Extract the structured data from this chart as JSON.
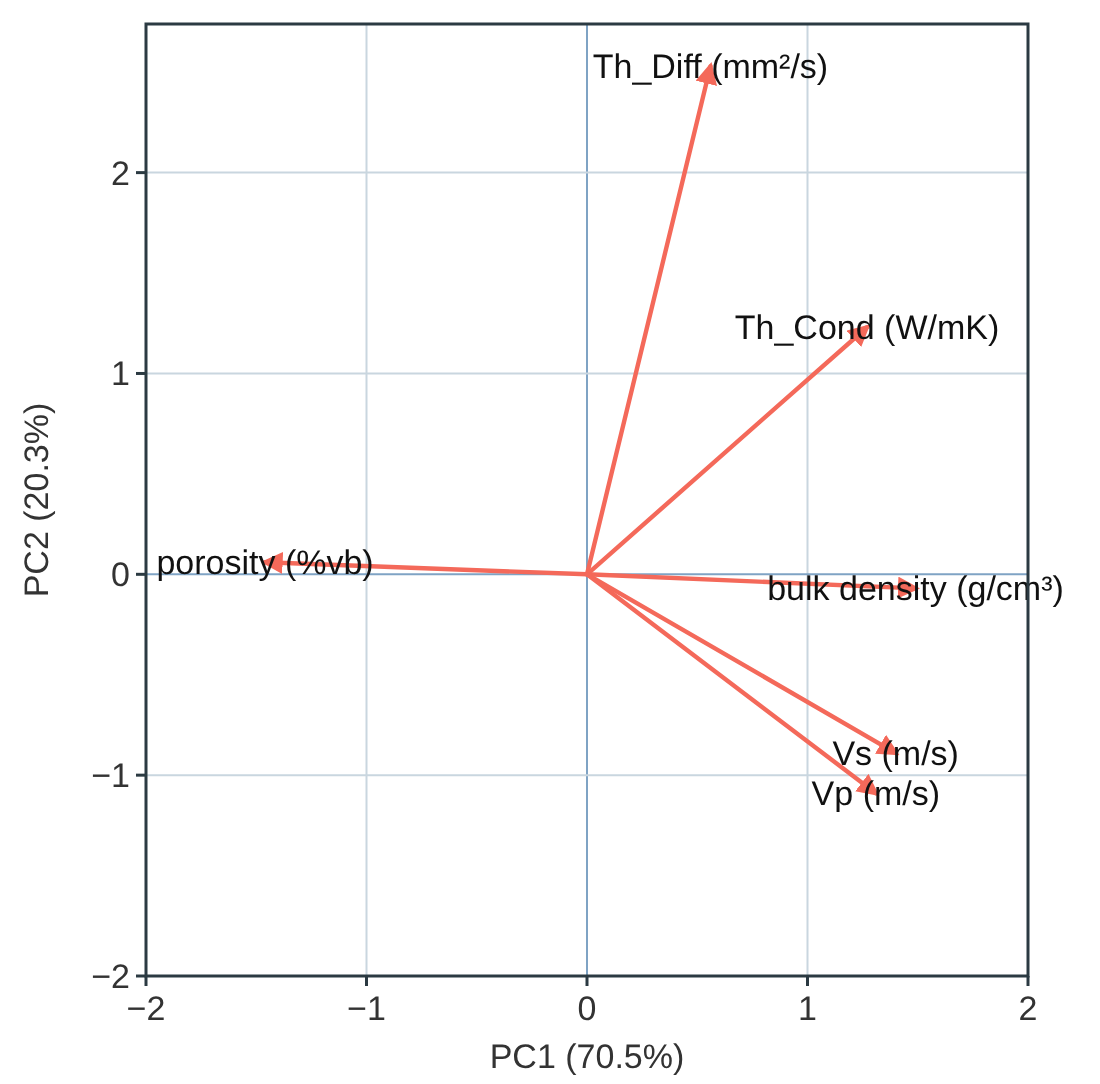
{
  "chart_data": {
    "type": "line",
    "xlabel": "PC1 (70.5%)",
    "ylabel": "PC2 (20.3%)",
    "xlim": [
      -2,
      2
    ],
    "ylim": [
      -2,
      2.74
    ],
    "xticks": [
      {
        "value": -2,
        "label": "−2"
      },
      {
        "value": -1,
        "label": "−1"
      },
      0,
      1,
      2
    ],
    "yticks": [
      {
        "value": -2,
        "label": "−2"
      },
      {
        "value": -1,
        "label": "−1"
      },
      0,
      1,
      2
    ],
    "grid": true,
    "line_style": "solid",
    "series": [
      {
        "name": "Th_Diff (mm²/s)",
        "color": "#f4695a",
        "x": [
          0,
          0.56
        ],
        "values": [
          0,
          2.53
        ]
      },
      {
        "name": "Th_Cond (W/mK)",
        "color": "#f4695a",
        "x": [
          0,
          1.27
        ],
        "values": [
          0,
          1.23
        ]
      },
      {
        "name": "porosity (%vb)",
        "color": "#f4695a",
        "x": [
          0,
          -1.46
        ],
        "values": [
          0,
          0.06
        ]
      },
      {
        "name": "bulk density (g/cm³)",
        "color": "#f4695a",
        "x": [
          0,
          1.49
        ],
        "values": [
          0,
          -0.07
        ]
      },
      {
        "name": "Vs (m/s)",
        "color": "#f4695a",
        "x": [
          0,
          1.4
        ],
        "values": [
          0,
          -0.89
        ]
      },
      {
        "name": "Vp (m/s)",
        "color": "#f4695a",
        "x": [
          0,
          1.31
        ],
        "values": [
          0,
          -1.09
        ]
      }
    ]
  }
}
